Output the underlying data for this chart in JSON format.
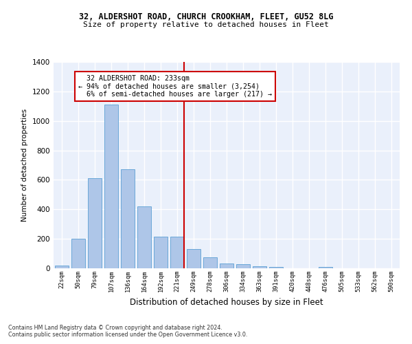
{
  "title_line1": "32, ALDERSHOT ROAD, CHURCH CROOKHAM, FLEET, GU52 8LG",
  "title_line2": "Size of property relative to detached houses in Fleet",
  "xlabel": "Distribution of detached houses by size in Fleet",
  "ylabel": "Number of detached properties",
  "categories": [
    "22sqm",
    "50sqm",
    "79sqm",
    "107sqm",
    "136sqm",
    "164sqm",
    "192sqm",
    "221sqm",
    "249sqm",
    "278sqm",
    "306sqm",
    "334sqm",
    "363sqm",
    "391sqm",
    "420sqm",
    "448sqm",
    "476sqm",
    "505sqm",
    "533sqm",
    "562sqm",
    "590sqm"
  ],
  "values": [
    20,
    200,
    610,
    1110,
    670,
    420,
    215,
    215,
    130,
    73,
    35,
    28,
    13,
    10,
    0,
    0,
    10,
    0,
    0,
    0,
    0
  ],
  "bar_color": "#aec6e8",
  "bar_edge_color": "#5a9fd4",
  "bg_color": "#eaf0fb",
  "grid_color": "#ffffff",
  "vline_color": "#cc0000",
  "annotation_text": "  32 ALDERSHOT ROAD: 233sqm\n← 94% of detached houses are smaller (3,254)\n  6% of semi-detached houses are larger (217) →",
  "annotation_box_color": "#cc0000",
  "footnote1": "Contains HM Land Registry data © Crown copyright and database right 2024.",
  "footnote2": "Contains public sector information licensed under the Open Government Licence v3.0.",
  "ylim": [
    0,
    1400
  ],
  "bin_width": 28,
  "vline_x_idx": 7
}
